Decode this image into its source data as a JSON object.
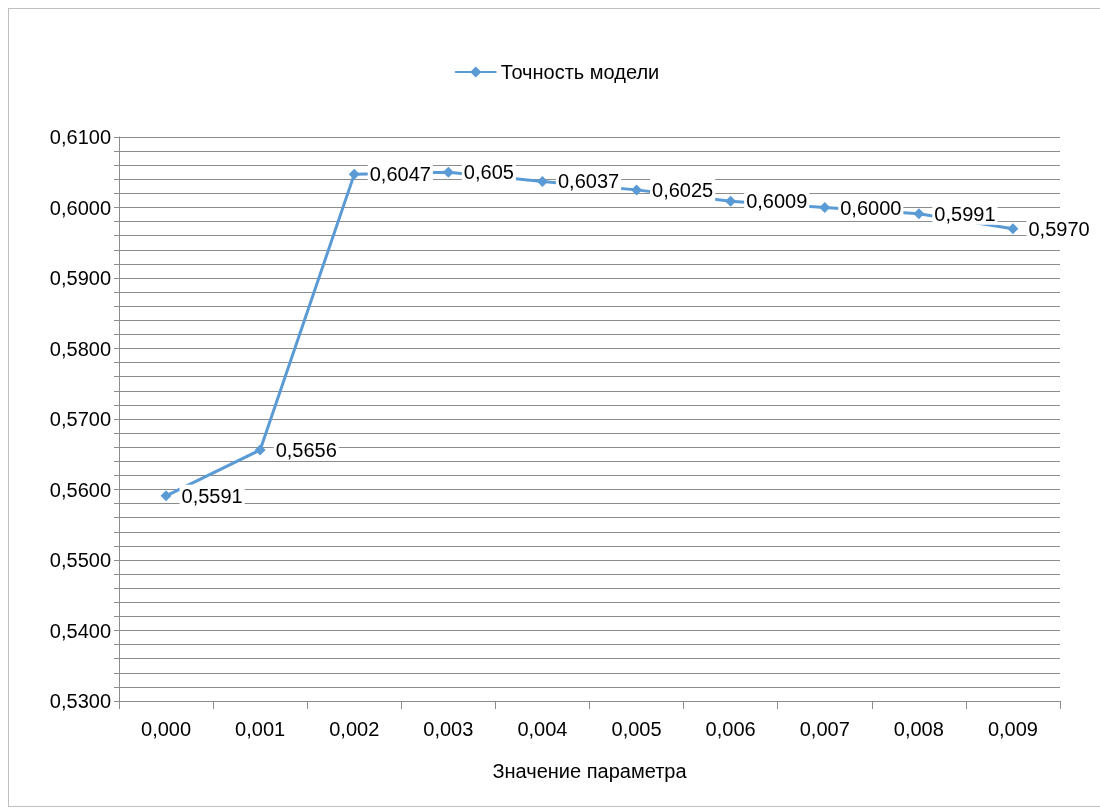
{
  "chart_data": {
    "type": "line",
    "xlabel": "Значение параметра",
    "categories": [
      "0,000",
      "0,001",
      "0,002",
      "0,003",
      "0,004",
      "0,005",
      "0,006",
      "0,007",
      "0,008",
      "0,009"
    ],
    "series": [
      {
        "name": "Точность модели",
        "color": "#5b9bd5",
        "values": [
          0.5591,
          0.5656,
          0.6047,
          0.605,
          0.6037,
          0.6025,
          0.6009,
          0.6,
          0.5991,
          0.597
        ],
        "value_labels": [
          "0,5591",
          "0,5656",
          "0,6047",
          "0,605",
          "0,6037",
          "0,6025",
          "0,6009",
          "0,6000",
          "0,5991",
          "0,5970"
        ]
      }
    ],
    "ylim": [
      0.53,
      0.61
    ],
    "yticks": [
      {
        "value": 0.53,
        "label": "0,5300"
      },
      {
        "value": 0.532,
        "label": null
      },
      {
        "value": 0.534,
        "label": null
      },
      {
        "value": 0.536,
        "label": null
      },
      {
        "value": 0.538,
        "label": null
      },
      {
        "value": 0.54,
        "label": "0,5400"
      },
      {
        "value": 0.542,
        "label": null
      },
      {
        "value": 0.544,
        "label": null
      },
      {
        "value": 0.546,
        "label": null
      },
      {
        "value": 0.548,
        "label": null
      },
      {
        "value": 0.55,
        "label": "0,5500"
      },
      {
        "value": 0.552,
        "label": null
      },
      {
        "value": 0.554,
        "label": null
      },
      {
        "value": 0.556,
        "label": null
      },
      {
        "value": 0.558,
        "label": null
      },
      {
        "value": 0.56,
        "label": "0,5600"
      },
      {
        "value": 0.562,
        "label": null
      },
      {
        "value": 0.564,
        "label": null
      },
      {
        "value": 0.566,
        "label": null
      },
      {
        "value": 0.568,
        "label": null
      },
      {
        "value": 0.57,
        "label": "0,5700"
      },
      {
        "value": 0.572,
        "label": null
      },
      {
        "value": 0.574,
        "label": null
      },
      {
        "value": 0.576,
        "label": null
      },
      {
        "value": 0.578,
        "label": null
      },
      {
        "value": 0.58,
        "label": "0,5800"
      },
      {
        "value": 0.582,
        "label": null
      },
      {
        "value": 0.584,
        "label": null
      },
      {
        "value": 0.586,
        "label": null
      },
      {
        "value": 0.588,
        "label": null
      },
      {
        "value": 0.59,
        "label": "0,5900"
      },
      {
        "value": 0.592,
        "label": null
      },
      {
        "value": 0.594,
        "label": null
      },
      {
        "value": 0.596,
        "label": null
      },
      {
        "value": 0.598,
        "label": null
      },
      {
        "value": 0.6,
        "label": "0,6000"
      },
      {
        "value": 0.602,
        "label": null
      },
      {
        "value": 0.604,
        "label": null
      },
      {
        "value": 0.606,
        "label": null
      },
      {
        "value": 0.608,
        "label": null
      },
      {
        "value": 0.61,
        "label": "0,6100"
      }
    ],
    "grid": "y",
    "legend": "top",
    "marker": "diamond",
    "line_style": "solid"
  }
}
